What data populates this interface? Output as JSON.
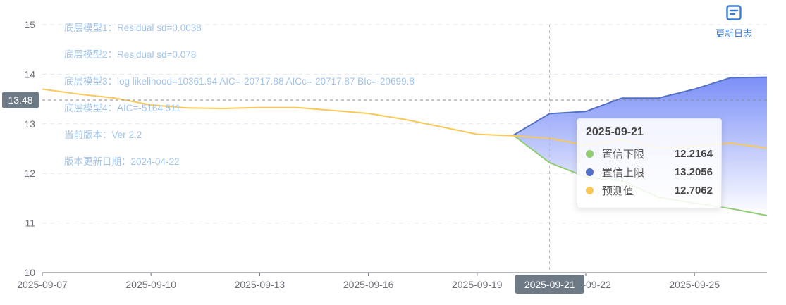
{
  "chart_data": {
    "type": "line",
    "x": [
      "2025-09-07",
      "2025-09-08",
      "2025-09-09",
      "2025-09-10",
      "2025-09-11",
      "2025-09-12",
      "2025-09-13",
      "2025-09-14",
      "2025-09-15",
      "2025-09-16",
      "2025-09-17",
      "2025-09-18",
      "2025-09-19",
      "2025-09-20",
      "2025-09-21",
      "2025-09-22",
      "2025-09-23",
      "2025-09-24",
      "2025-09-25",
      "2025-09-26",
      "2025-09-27"
    ],
    "xticks": [
      "2025-09-07",
      "2025-09-10",
      "2025-09-13",
      "2025-09-16",
      "2025-09-19",
      "2025-09-22",
      "2025-09-25"
    ],
    "ylim": [
      10,
      15
    ],
    "yticks": [
      10,
      11,
      12,
      13,
      14,
      15
    ],
    "grid": true,
    "series": [
      {
        "name": "置信下限",
        "color": "#91cc75",
        "values": [
          null,
          null,
          null,
          null,
          null,
          null,
          null,
          null,
          null,
          null,
          null,
          null,
          null,
          12.77,
          12.2164,
          11.93,
          11.85,
          11.52,
          11.4,
          11.29,
          11.15
        ]
      },
      {
        "name": "置信上限",
        "color": "#5470c6",
        "values": [
          null,
          null,
          null,
          null,
          null,
          null,
          null,
          null,
          null,
          null,
          null,
          null,
          null,
          12.77,
          13.2056,
          13.25,
          13.52,
          13.52,
          13.7,
          13.93,
          13.94
        ]
      },
      {
        "name": "预测值",
        "color": "#fac858",
        "values": [
          13.7,
          13.6,
          13.52,
          13.38,
          13.32,
          13.31,
          13.33,
          13.33,
          13.27,
          13.21,
          13.09,
          12.94,
          12.79,
          12.76,
          12.7062,
          12.57,
          12.68,
          12.52,
          12.55,
          12.61,
          12.51
        ]
      }
    ],
    "axis_pointer": {
      "x": "2025-09-21",
      "y": "13.48"
    },
    "tooltip": {
      "title": "2025-09-21",
      "rows": [
        {
          "name": "置信下限",
          "value": "12.2164",
          "color": "#91cc75"
        },
        {
          "name": "置信上限",
          "value": "13.2056",
          "color": "#5470c6"
        },
        {
          "name": "预测值",
          "value": "12.7062",
          "color": "#fac858"
        }
      ]
    },
    "annotations": [
      "底层模型1：Residual sd=0.0038",
      "底层模型2：Residual sd=0.078",
      "底层模型3：log likelihood=10361.94 AIC=-20717.88 AICc=-20717.87 BIc=-20699.8",
      "底层模型4：AIC=-5164.511",
      "当前版本：Ver 2.2",
      "版本更新日期：2024-04-22"
    ]
  },
  "toolbar": {
    "changelog_label": "更新日志",
    "changelog_icon": "document-icon"
  }
}
